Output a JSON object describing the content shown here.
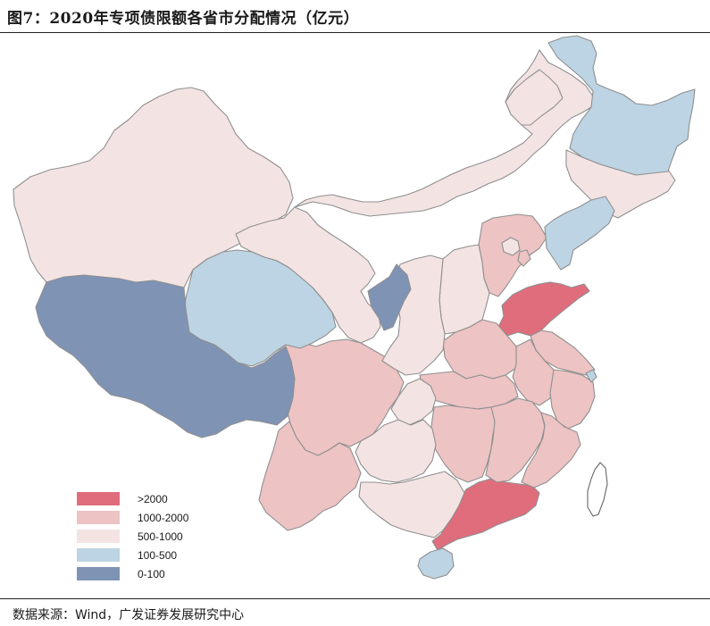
{
  "header": {
    "title": "图7：2020年专项债限额各省市分配情况（亿元）"
  },
  "legend": [
    {
      "label": ">2000",
      "color": "#df6d7c"
    },
    {
      "label": "1000-2000",
      "color": "#edc3c4"
    },
    {
      "label": "500-1000",
      "color": "#f3e4e3"
    },
    {
      "label": "100-500",
      "color": "#bcd4e3"
    },
    {
      "label": "0-100",
      "color": "#7f93b5"
    }
  ],
  "footer": {
    "source": "数据来源：Wind，广发证券发展研究中心"
  }
}
